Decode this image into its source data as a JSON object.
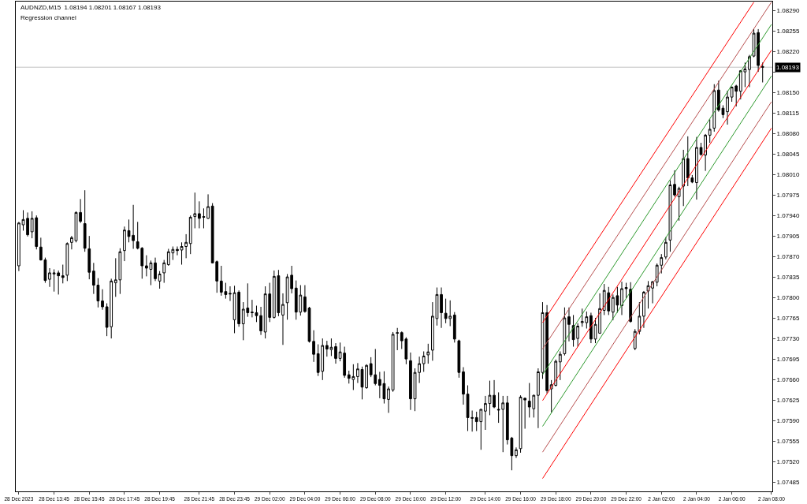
{
  "chart_data": {
    "type": "candlestick",
    "title": "AUDNZD,M15  1.08194 1.08201 1.08167 1.08193",
    "subtitle": "Regression channel",
    "categories": [
      "28 Dec 2023",
      null,
      null,
      null,
      null,
      null,
      null,
      null,
      "28 Dec 13:45",
      null,
      null,
      null,
      null,
      null,
      null,
      null,
      "28 Dec 15:45",
      null,
      null,
      null,
      null,
      null,
      null,
      null,
      "28 Dec 17:45",
      null,
      null,
      null,
      null,
      null,
      null,
      null,
      "28 Dec 19:45",
      null,
      null,
      null,
      null,
      null,
      null,
      null,
      null,
      "28 Dec 21:45",
      null,
      null,
      null,
      null,
      null,
      null,
      null,
      "28 Dec 23:45",
      null,
      null,
      null,
      null,
      null,
      null,
      null,
      "29 Dec 02:00",
      null,
      null,
      null,
      null,
      null,
      null,
      null,
      "29 Dec 04:00",
      null,
      null,
      null,
      null,
      null,
      null,
      null,
      "29 Dec 06:00",
      null,
      null,
      null,
      null,
      null,
      null,
      null,
      "29 Dec 08:00",
      null,
      null,
      null,
      null,
      null,
      null,
      null,
      "29 Dec 10:00",
      null,
      null,
      null,
      null,
      null,
      null,
      null,
      "29 Dec 12:00",
      null,
      null,
      null,
      null,
      null,
      null,
      null,
      null,
      "29 Dec 14:00",
      null,
      null,
      null,
      null,
      null,
      null,
      null,
      "29 Dec 16:00",
      null,
      null,
      null,
      null,
      null,
      null,
      null,
      "29 Dec 18:00",
      null,
      null,
      null,
      null,
      null,
      null,
      null,
      "29 Dec 20:00",
      null,
      null,
      null,
      null,
      null,
      null,
      null,
      "29 Dec 22:00",
      null,
      null,
      null,
      null,
      null,
      null,
      null,
      "2 Jan 02:00",
      null,
      null,
      null,
      null,
      null,
      null,
      null,
      "2 Jan 04:00",
      null,
      null,
      null,
      null,
      null,
      null,
      null,
      "2 Jan 06:00",
      null,
      null,
      null,
      null,
      null,
      null,
      null,
      null,
      "2 Jan 08:00"
    ],
    "ohlc": [
      [
        1.07854,
        1.07929,
        1.07845,
        1.07927
      ],
      [
        1.07924,
        1.07949,
        1.07914,
        1.07933
      ],
      [
        1.07935,
        1.07945,
        1.07904,
        1.07907
      ],
      [
        1.07912,
        1.07947,
        1.07901,
        1.07935
      ],
      [
        1.07936,
        1.0794,
        1.07882,
        1.07887
      ],
      [
        1.07886,
        1.07902,
        1.07863,
        1.07864
      ],
      [
        1.07864,
        1.07868,
        1.07825,
        1.07829
      ],
      [
        1.07831,
        1.0785,
        1.07818,
        1.07842
      ],
      [
        1.0784,
        1.07848,
        1.0781,
        1.07842
      ],
      [
        1.07842,
        1.07846,
        1.07805,
        1.07837
      ],
      [
        1.07837,
        1.07856,
        1.07824,
        1.07834
      ],
      [
        1.07838,
        1.07894,
        1.07828,
        1.07892
      ],
      [
        1.07894,
        1.07905,
        1.07882,
        1.07902
      ],
      [
        1.07897,
        1.07947,
        1.07894,
        1.07945
      ],
      [
        1.07945,
        1.07968,
        1.07927,
        1.0793
      ],
      [
        1.07926,
        1.07983,
        1.07878,
        1.07884
      ],
      [
        1.07883,
        1.07905,
        1.07831,
        1.07843
      ],
      [
        1.07845,
        1.07859,
        1.07806,
        1.07821
      ],
      [
        1.07821,
        1.07833,
        1.07783,
        1.07794
      ],
      [
        1.07794,
        1.07814,
        1.07779,
        1.07784
      ],
      [
        1.07784,
        1.0779,
        1.07734,
        1.07749
      ],
      [
        1.0775,
        1.07832,
        1.0773,
        1.07828
      ],
      [
        1.07825,
        1.07867,
        1.07801,
        1.0783
      ],
      [
        1.0783,
        1.07884,
        1.07806,
        1.07878
      ],
      [
        1.0788,
        1.07921,
        1.07862,
        1.07915
      ],
      [
        1.07914,
        1.07933,
        1.07894,
        1.07904
      ],
      [
        1.07906,
        1.07958,
        1.07883,
        1.07897
      ],
      [
        1.07895,
        1.07929,
        1.07882,
        1.07884
      ],
      [
        1.07884,
        1.07886,
        1.07832,
        1.07854
      ],
      [
        1.07854,
        1.07872,
        1.07836,
        1.0785
      ],
      [
        1.07848,
        1.07863,
        1.07821,
        1.07859
      ],
      [
        1.07859,
        1.07868,
        1.07828,
        1.07832
      ],
      [
        1.07828,
        1.07845,
        1.07815,
        1.0784
      ],
      [
        1.07842,
        1.07864,
        1.07825,
        1.07859
      ],
      [
        1.07856,
        1.07883,
        1.07854,
        1.07878
      ],
      [
        1.07876,
        1.07887,
        1.07864,
        1.07882
      ],
      [
        1.07882,
        1.07887,
        1.07872,
        1.0788
      ],
      [
        1.07881,
        1.07894,
        1.07856,
        1.07887
      ],
      [
        1.07887,
        1.07908,
        1.07867,
        1.07894
      ],
      [
        1.07892,
        1.0794,
        1.07874,
        1.07937
      ],
      [
        1.07938,
        1.07979,
        1.07918,
        1.07943
      ],
      [
        1.07943,
        1.07964,
        1.07918,
        1.07935
      ],
      [
        1.07938,
        1.07952,
        1.07918,
        1.07937
      ],
      [
        1.07935,
        1.07976,
        1.07934,
        1.07955
      ],
      [
        1.07956,
        1.07961,
        1.07858,
        1.07859
      ],
      [
        1.07861,
        1.07863,
        1.07808,
        1.07828
      ],
      [
        1.07828,
        1.07854,
        1.07803,
        1.07809
      ],
      [
        1.0781,
        1.07825,
        1.07798,
        1.07805
      ],
      [
        1.07807,
        1.07819,
        1.07794,
        1.07806
      ],
      [
        1.07762,
        1.0782,
        1.07739,
        1.07808
      ],
      [
        1.07809,
        1.07812,
        1.0775,
        1.07755
      ],
      [
        1.07755,
        1.07792,
        1.07727,
        1.0778
      ],
      [
        1.07782,
        1.07824,
        1.07767,
        1.07774
      ],
      [
        1.07775,
        1.07796,
        1.07766,
        1.07774
      ],
      [
        1.07774,
        1.07786,
        1.07758,
        1.07769
      ],
      [
        1.07769,
        1.07784,
        1.07736,
        1.07743
      ],
      [
        1.07741,
        1.07819,
        1.0773,
        1.07806
      ],
      [
        1.07806,
        1.07825,
        1.07758,
        1.07766
      ],
      [
        1.07766,
        1.07846,
        1.07764,
        1.07836
      ],
      [
        1.07837,
        1.07847,
        1.07768,
        1.07774
      ],
      [
        1.0777,
        1.07807,
        1.07719,
        1.07788
      ],
      [
        1.07791,
        1.0784,
        1.07762,
        1.07835
      ],
      [
        1.07838,
        1.07854,
        1.07807,
        1.07815
      ],
      [
        1.07816,
        1.07829,
        1.07762,
        1.07775
      ],
      [
        1.07775,
        1.07821,
        1.07769,
        1.07804
      ],
      [
        1.07801,
        1.07821,
        1.07774,
        1.07776
      ],
      [
        1.07782,
        1.07784,
        1.07723,
        1.07725
      ],
      [
        1.07725,
        1.07744,
        1.0769,
        1.07703
      ],
      [
        1.07704,
        1.0772,
        1.07666,
        1.07672
      ],
      [
        1.07674,
        1.0773,
        1.07659,
        1.07718
      ],
      [
        1.07718,
        1.07726,
        1.07699,
        1.07712
      ],
      [
        1.07711,
        1.0773,
        1.077,
        1.07715
      ],
      [
        1.07716,
        1.07722,
        1.07687,
        1.07696
      ],
      [
        1.07696,
        1.07723,
        1.07691,
        1.07707
      ],
      [
        1.07705,
        1.07716,
        1.07663,
        1.07667
      ],
      [
        1.07668,
        1.07675,
        1.07653,
        1.07662
      ],
      [
        1.0766,
        1.07686,
        1.07642,
        1.07665
      ],
      [
        1.07665,
        1.07688,
        1.07654,
        1.07678
      ],
      [
        1.07677,
        1.07682,
        1.07626,
        1.07647
      ],
      [
        1.07646,
        1.07686,
        1.07644,
        1.07684
      ],
      [
        1.07687,
        1.07698,
        1.07664,
        1.07668
      ],
      [
        1.07668,
        1.07712,
        1.0765,
        1.07653
      ],
      [
        1.0766,
        1.07673,
        1.07628,
        1.0765
      ],
      [
        1.07653,
        1.07674,
        1.07619,
        1.07627
      ],
      [
        1.07626,
        1.07648,
        1.07603,
        1.07644
      ],
      [
        1.07642,
        1.07741,
        1.07639,
        1.07737
      ],
      [
        1.0774,
        1.07748,
        1.0771,
        1.07739
      ],
      [
        1.0774,
        1.07742,
        1.07712,
        1.07726
      ],
      [
        1.07729,
        1.07732,
        1.07686,
        1.07695
      ],
      [
        1.07692,
        1.07706,
        1.07608,
        1.07627
      ],
      [
        1.07627,
        1.07679,
        1.07606,
        1.07672
      ],
      [
        1.07672,
        1.07699,
        1.07654,
        1.07687
      ],
      [
        1.07687,
        1.07708,
        1.07673,
        1.077
      ],
      [
        1.07702,
        1.07721,
        1.07687,
        1.07707
      ],
      [
        1.0771,
        1.07792,
        1.07692,
        1.07768
      ],
      [
        1.07764,
        1.07817,
        1.07752,
        1.07805
      ],
      [
        1.07805,
        1.07817,
        1.07748,
        1.07774
      ],
      [
        1.07773,
        1.07798,
        1.07756,
        1.07764
      ],
      [
        1.07764,
        1.07795,
        1.07751,
        1.07768
      ],
      [
        1.0777,
        1.07775,
        1.07723,
        1.07729
      ],
      [
        1.07726,
        1.07728,
        1.07663,
        1.07672
      ],
      [
        1.07673,
        1.07681,
        1.07617,
        1.07635
      ],
      [
        1.07635,
        1.0765,
        1.07572,
        1.07595
      ],
      [
        1.07595,
        1.07607,
        1.07571,
        1.07594
      ],
      [
        1.07595,
        1.07605,
        1.07572,
        1.07588
      ],
      [
        1.07588,
        1.0761,
        1.0754,
        1.07609
      ],
      [
        1.07606,
        1.07632,
        1.07574,
        1.07619
      ],
      [
        1.07619,
        1.07658,
        1.07599,
        1.07633
      ],
      [
        1.07633,
        1.07659,
        1.07611,
        1.07613
      ],
      [
        1.07609,
        1.07638,
        1.07586,
        1.07608
      ],
      [
        1.07609,
        1.07632,
        1.07536,
        1.0762
      ],
      [
        1.0762,
        1.07632,
        1.07549,
        1.07557
      ],
      [
        1.0756,
        1.07562,
        1.07505,
        1.0753
      ],
      [
        1.0753,
        1.07544,
        1.07526,
        1.0754
      ],
      [
        1.07542,
        1.07633,
        1.07535,
        1.0763
      ],
      [
        1.07628,
        1.07629,
        1.07576,
        1.07625
      ],
      [
        1.07623,
        1.07654,
        1.07595,
        1.07613
      ],
      [
        1.0761,
        1.07634,
        1.07595,
        1.07633
      ],
      [
        1.07633,
        1.07679,
        1.07577,
        1.07673
      ],
      [
        1.07672,
        1.07792,
        1.07661,
        1.07774
      ],
      [
        1.07774,
        1.07787,
        1.07636,
        1.07641
      ],
      [
        1.07644,
        1.07659,
        1.07604,
        1.07651
      ],
      [
        1.0765,
        1.07694,
        1.07648,
        1.07691
      ],
      [
        1.0769,
        1.07708,
        1.07659,
        1.07703
      ],
      [
        1.07704,
        1.07783,
        1.07701,
        1.07765
      ],
      [
        1.07767,
        1.07783,
        1.07725,
        1.07754
      ],
      [
        1.07752,
        1.0777,
        1.07716,
        1.07728
      ],
      [
        1.0773,
        1.07756,
        1.07716,
        1.07751
      ],
      [
        1.07757,
        1.07781,
        1.0775,
        1.07759
      ],
      [
        1.07757,
        1.07776,
        1.07747,
        1.07767
      ],
      [
        1.07769,
        1.07774,
        1.07722,
        1.07729
      ],
      [
        1.07729,
        1.07765,
        1.07722,
        1.07754
      ],
      [
        1.07739,
        1.07807,
        1.07738,
        1.07781
      ],
      [
        1.07778,
        1.07823,
        1.0777,
        1.07812
      ],
      [
        1.07808,
        1.07818,
        1.0777,
        1.07777
      ],
      [
        1.07775,
        1.07805,
        1.07761,
        1.078
      ],
      [
        1.07803,
        1.07818,
        1.07774,
        1.07787
      ],
      [
        1.07786,
        1.07827,
        1.0777,
        1.07815
      ],
      [
        1.07817,
        1.07825,
        1.07799,
        1.07815
      ],
      [
        1.07814,
        1.07826,
        1.07757,
        1.07759
      ],
      [
        1.07713,
        1.07746,
        1.0771,
        1.07742
      ],
      [
        1.07742,
        1.07792,
        1.07737,
        1.07768
      ],
      [
        1.07768,
        1.07811,
        1.07748,
        1.07809
      ],
      [
        1.07811,
        1.07828,
        1.07781,
        1.0782
      ],
      [
        1.07816,
        1.07828,
        1.0779,
        1.07827
      ],
      [
        1.07826,
        1.07858,
        1.07819,
        1.07855
      ],
      [
        1.07855,
        1.07874,
        1.07841,
        1.07868
      ],
      [
        1.07869,
        1.07903,
        1.07865,
        1.07894
      ],
      [
        1.07898,
        1.08,
        1.07878,
        1.07992
      ],
      [
        1.07993,
        1.08017,
        1.07972,
        1.07975
      ],
      [
        1.07972,
        1.07989,
        1.07931,
        1.07986
      ],
      [
        1.0799,
        1.08052,
        1.07956,
        1.08037
      ],
      [
        1.08037,
        1.08075,
        1.0799,
        1.08004
      ],
      [
        1.08004,
        1.08009,
        1.07995,
        1.07997
      ],
      [
        1.07996,
        1.08074,
        1.07967,
        1.08056
      ],
      [
        1.08056,
        1.08064,
        1.08042,
        1.08044
      ],
      [
        1.08043,
        1.08079,
        1.08016,
        1.08077
      ],
      [
        1.08077,
        1.08104,
        1.08064,
        1.08087
      ],
      [
        1.08089,
        1.08164,
        1.08083,
        1.08153
      ],
      [
        1.08154,
        1.0817,
        1.08117,
        1.0812
      ],
      [
        1.08123,
        1.08128,
        1.08106,
        1.08112
      ],
      [
        1.08117,
        1.08153,
        1.08095,
        1.08142
      ],
      [
        1.08142,
        1.0816,
        1.08134,
        1.08159
      ],
      [
        1.08161,
        1.08163,
        1.08126,
        1.08152
      ],
      [
        1.08152,
        1.08188,
        1.08138,
        1.08187
      ],
      [
        1.08185,
        1.08201,
        1.08159,
        1.0819
      ],
      [
        1.08189,
        1.08214,
        1.08159,
        1.08211
      ],
      [
        1.08212,
        1.08258,
        1.0821,
        1.08251
      ],
      [
        1.08252,
        1.08258,
        1.08185,
        1.08196
      ],
      [
        1.08194,
        1.08201,
        1.08167,
        1.08193
      ],
      null,
      null
    ],
    "series": [
      {
        "type": "line",
        "color": "#ff0000",
        "values": [
          null,
          null,
          null,
          null,
          null,
          null,
          null,
          null,
          null,
          null,
          null,
          null,
          null,
          null,
          null,
          null,
          null,
          null,
          null,
          null,
          null,
          null,
          null,
          null,
          null,
          null,
          null,
          null,
          null,
          null,
          null,
          null,
          null,
          null,
          null,
          null,
          null,
          null,
          null,
          null,
          null,
          null,
          null,
          null,
          null,
          null,
          null,
          null,
          null,
          null,
          null,
          null,
          null,
          null,
          null,
          null,
          null,
          null,
          null,
          null,
          null,
          null,
          null,
          null,
          null,
          null,
          null,
          null,
          null,
          null,
          null,
          null,
          null,
          null,
          null,
          null,
          null,
          null,
          null,
          null,
          null,
          null,
          null,
          null,
          null,
          null,
          null,
          null,
          null,
          null,
          null,
          null,
          null,
          null,
          null,
          null,
          null,
          null,
          null,
          null,
          null,
          null,
          null,
          null,
          null,
          null,
          null,
          null,
          null,
          null,
          null,
          null,
          null,
          null,
          null,
          null,
          null,
          null,
          null,
          1.07757,
          null,
          null,
          null,
          null,
          null,
          null,
          null,
          null,
          null,
          null,
          null,
          null,
          null,
          null,
          null,
          null,
          null,
          null,
          null,
          null,
          null,
          null,
          null,
          null,
          null,
          null,
          null,
          null,
          null,
          null,
          null,
          null,
          null,
          null,
          null,
          null,
          null,
          null,
          null,
          null,
          null,
          null,
          null,
          null,
          null,
          null,
          null,
          1.08304,
          null,
          null,
          null,
          null
        ]
      },
      {
        "type": "line",
        "color": "#b85050",
        "values": [
          null,
          null,
          null,
          null,
          null,
          null,
          null,
          null,
          null,
          null,
          null,
          null,
          null,
          null,
          null,
          null,
          null,
          null,
          null,
          null,
          null,
          null,
          null,
          null,
          null,
          null,
          null,
          null,
          null,
          null,
          null,
          null,
          null,
          null,
          null,
          null,
          null,
          null,
          null,
          null,
          null,
          null,
          null,
          null,
          null,
          null,
          null,
          null,
          null,
          null,
          null,
          null,
          null,
          null,
          null,
          null,
          null,
          null,
          null,
          null,
          null,
          null,
          null,
          null,
          null,
          null,
          null,
          null,
          null,
          null,
          null,
          null,
          null,
          null,
          null,
          null,
          null,
          null,
          null,
          null,
          null,
          null,
          null,
          null,
          null,
          null,
          null,
          null,
          null,
          null,
          null,
          null,
          null,
          null,
          null,
          null,
          null,
          null,
          null,
          null,
          null,
          null,
          null,
          null,
          null,
          null,
          null,
          null,
          null,
          null,
          null,
          null,
          null,
          null,
          null,
          null,
          null,
          null,
          null,
          1.07712,
          null,
          null,
          null,
          null,
          null,
          null,
          null,
          null,
          null,
          null,
          null,
          null,
          null,
          null,
          null,
          null,
          null,
          null,
          null,
          null,
          null,
          null,
          null,
          null,
          null,
          null,
          null,
          null,
          null,
          null,
          null,
          null,
          null,
          null,
          null,
          null,
          null,
          null,
          null,
          null,
          null,
          null,
          null,
          null,
          null,
          null,
          null,
          null,
          null,
          null,
          null,
          1.08304
        ]
      },
      {
        "type": "line",
        "color": "#2e9a2e",
        "values": [
          null,
          null,
          null,
          null,
          null,
          null,
          null,
          null,
          null,
          null,
          null,
          null,
          null,
          null,
          null,
          null,
          null,
          null,
          null,
          null,
          null,
          null,
          null,
          null,
          null,
          null,
          null,
          null,
          null,
          null,
          null,
          null,
          null,
          null,
          null,
          null,
          null,
          null,
          null,
          null,
          null,
          null,
          null,
          null,
          null,
          null,
          null,
          null,
          null,
          null,
          null,
          null,
          null,
          null,
          null,
          null,
          null,
          null,
          null,
          null,
          null,
          null,
          null,
          null,
          null,
          null,
          null,
          null,
          null,
          null,
          null,
          null,
          null,
          null,
          null,
          null,
          null,
          null,
          null,
          null,
          null,
          null,
          null,
          null,
          null,
          null,
          null,
          null,
          null,
          null,
          null,
          null,
          null,
          null,
          null,
          null,
          null,
          null,
          null,
          null,
          null,
          null,
          null,
          null,
          null,
          null,
          null,
          null,
          null,
          null,
          null,
          null,
          null,
          null,
          null,
          null,
          null,
          null,
          null,
          1.07668,
          null,
          null,
          null,
          null,
          null,
          null,
          null,
          null,
          null,
          null,
          null,
          null,
          null,
          null,
          null,
          null,
          null,
          null,
          null,
          null,
          null,
          null,
          null,
          null,
          null,
          null,
          null,
          null,
          null,
          null,
          null,
          null,
          null,
          null,
          null,
          null,
          null,
          null,
          null,
          null,
          null,
          null,
          null,
          null,
          null,
          null,
          null,
          null,
          null,
          null,
          null,
          1.08266
        ]
      },
      {
        "type": "line",
        "color": "#ff0000",
        "values": [
          null,
          null,
          null,
          null,
          null,
          null,
          null,
          null,
          null,
          null,
          null,
          null,
          null,
          null,
          null,
          null,
          null,
          null,
          null,
          null,
          null,
          null,
          null,
          null,
          null,
          null,
          null,
          null,
          null,
          null,
          null,
          null,
          null,
          null,
          null,
          null,
          null,
          null,
          null,
          null,
          null,
          null,
          null,
          null,
          null,
          null,
          null,
          null,
          null,
          null,
          null,
          null,
          null,
          null,
          null,
          null,
          null,
          null,
          null,
          null,
          null,
          null,
          null,
          null,
          null,
          null,
          null,
          null,
          null,
          null,
          null,
          null,
          null,
          null,
          null,
          null,
          null,
          null,
          null,
          null,
          null,
          null,
          null,
          null,
          null,
          null,
          null,
          null,
          null,
          null,
          null,
          null,
          null,
          null,
          null,
          null,
          null,
          null,
          null,
          null,
          null,
          null,
          null,
          null,
          null,
          null,
          null,
          null,
          null,
          null,
          null,
          null,
          null,
          null,
          null,
          null,
          null,
          null,
          null,
          1.07624,
          null,
          null,
          null,
          null,
          null,
          null,
          null,
          null,
          null,
          null,
          null,
          null,
          null,
          null,
          null,
          null,
          null,
          null,
          null,
          null,
          null,
          null,
          null,
          null,
          null,
          null,
          null,
          null,
          null,
          null,
          null,
          null,
          null,
          null,
          null,
          null,
          null,
          null,
          null,
          null,
          null,
          null,
          null,
          null,
          null,
          null,
          null,
          null,
          null,
          null,
          null,
          1.08222
        ]
      },
      {
        "type": "line",
        "color": "#2e9a2e",
        "values": [
          null,
          null,
          null,
          null,
          null,
          null,
          null,
          null,
          null,
          null,
          null,
          null,
          null,
          null,
          null,
          null,
          null,
          null,
          null,
          null,
          null,
          null,
          null,
          null,
          null,
          null,
          null,
          null,
          null,
          null,
          null,
          null,
          null,
          null,
          null,
          null,
          null,
          null,
          null,
          null,
          null,
          null,
          null,
          null,
          null,
          null,
          null,
          null,
          null,
          null,
          null,
          null,
          null,
          null,
          null,
          null,
          null,
          null,
          null,
          null,
          null,
          null,
          null,
          null,
          null,
          null,
          null,
          null,
          null,
          null,
          null,
          null,
          null,
          null,
          null,
          null,
          null,
          null,
          null,
          null,
          null,
          null,
          null,
          null,
          null,
          null,
          null,
          null,
          null,
          null,
          null,
          null,
          null,
          null,
          null,
          null,
          null,
          null,
          null,
          null,
          null,
          null,
          null,
          null,
          null,
          null,
          null,
          null,
          null,
          null,
          null,
          null,
          null,
          null,
          null,
          null,
          null,
          null,
          null,
          1.0758,
          null,
          null,
          null,
          null,
          null,
          null,
          null,
          null,
          null,
          null,
          null,
          null,
          null,
          null,
          null,
          null,
          null,
          null,
          null,
          null,
          null,
          null,
          null,
          null,
          null,
          null,
          null,
          null,
          null,
          null,
          null,
          null,
          null,
          null,
          null,
          null,
          null,
          null,
          null,
          null,
          null,
          null,
          null,
          null,
          null,
          null,
          null,
          null,
          null,
          null,
          null,
          1.08178
        ]
      },
      {
        "type": "line",
        "color": "#b85050",
        "values": [
          null,
          null,
          null,
          null,
          null,
          null,
          null,
          null,
          null,
          null,
          null,
          null,
          null,
          null,
          null,
          null,
          null,
          null,
          null,
          null,
          null,
          null,
          null,
          null,
          null,
          null,
          null,
          null,
          null,
          null,
          null,
          null,
          null,
          null,
          null,
          null,
          null,
          null,
          null,
          null,
          null,
          null,
          null,
          null,
          null,
          null,
          null,
          null,
          null,
          null,
          null,
          null,
          null,
          null,
          null,
          null,
          null,
          null,
          null,
          null,
          null,
          null,
          null,
          null,
          null,
          null,
          null,
          null,
          null,
          null,
          null,
          null,
          null,
          null,
          null,
          null,
          null,
          null,
          null,
          null,
          null,
          null,
          null,
          null,
          null,
          null,
          null,
          null,
          null,
          null,
          null,
          null,
          null,
          null,
          null,
          null,
          null,
          null,
          null,
          null,
          null,
          null,
          null,
          null,
          null,
          null,
          null,
          null,
          null,
          null,
          null,
          null,
          null,
          null,
          null,
          null,
          null,
          null,
          null,
          1.07536,
          null,
          null,
          null,
          null,
          null,
          null,
          null,
          null,
          null,
          null,
          null,
          null,
          null,
          null,
          null,
          null,
          null,
          null,
          null,
          null,
          null,
          null,
          null,
          null,
          null,
          null,
          null,
          null,
          null,
          null,
          null,
          null,
          null,
          null,
          null,
          null,
          null,
          null,
          null,
          null,
          null,
          null,
          null,
          null,
          null,
          null,
          null,
          null,
          null,
          null,
          null,
          1.08134
        ]
      },
      {
        "type": "line",
        "color": "#ff0000",
        "values": [
          null,
          null,
          null,
          null,
          null,
          null,
          null,
          null,
          null,
          null,
          null,
          null,
          null,
          null,
          null,
          null,
          null,
          null,
          null,
          null,
          null,
          null,
          null,
          null,
          null,
          null,
          null,
          null,
          null,
          null,
          null,
          null,
          null,
          null,
          null,
          null,
          null,
          null,
          null,
          null,
          null,
          null,
          null,
          null,
          null,
          null,
          null,
          null,
          null,
          null,
          null,
          null,
          null,
          null,
          null,
          null,
          null,
          null,
          null,
          null,
          null,
          null,
          null,
          null,
          null,
          null,
          null,
          null,
          null,
          null,
          null,
          null,
          null,
          null,
          null,
          null,
          null,
          null,
          null,
          null,
          null,
          null,
          null,
          null,
          null,
          null,
          null,
          null,
          null,
          null,
          null,
          null,
          null,
          null,
          null,
          null,
          null,
          null,
          null,
          null,
          null,
          null,
          null,
          null,
          null,
          null,
          null,
          null,
          null,
          null,
          null,
          null,
          null,
          null,
          null,
          null,
          null,
          null,
          null,
          1.07491,
          null,
          null,
          null,
          null,
          null,
          null,
          null,
          null,
          null,
          null,
          null,
          null,
          null,
          null,
          null,
          null,
          null,
          null,
          null,
          null,
          null,
          null,
          null,
          null,
          null,
          null,
          null,
          null,
          null,
          null,
          null,
          null,
          null,
          null,
          null,
          null,
          null,
          null,
          null,
          null,
          null,
          null,
          null,
          null,
          null,
          null,
          null,
          null,
          null,
          null,
          null,
          1.08089
        ]
      }
    ],
    "ylim": [
      1.07469,
      1.08305
    ],
    "yticks": [
      1.07485,
      {
        "value": 1.0752,
        "label": "1.07520"
      },
      1.07555,
      {
        "value": 1.0759,
        "label": "1.07590"
      },
      1.07625,
      {
        "value": 1.0766,
        "label": "1.07660"
      },
      1.07695,
      {
        "value": 1.0773,
        "label": "1.07730"
      },
      1.07765,
      {
        "value": 1.078,
        "label": "1.07800"
      },
      1.07835,
      {
        "value": 1.0787,
        "label": "1.07870"
      },
      1.07905,
      {
        "value": 1.0794,
        "label": "1.07940"
      },
      1.07975,
      {
        "value": 1.0801,
        "label": "1.08010"
      },
      1.08045,
      {
        "value": 1.0808,
        "label": "1.08080"
      },
      1.08115,
      {
        "value": 1.0815,
        "label": "1.08150"
      },
      {
        "value": 1.08185,
        "label": null
      },
      {
        "value": 1.0822,
        "label": "1.08220"
      },
      1.08255,
      {
        "value": 1.0829,
        "label": "1.08290"
      }
    ],
    "ref_lines": [
      {
        "axis": "y",
        "value": 1.08193,
        "label": "1.08193",
        "color": "#c0c0c0"
      }
    ],
    "grid": false
  }
}
